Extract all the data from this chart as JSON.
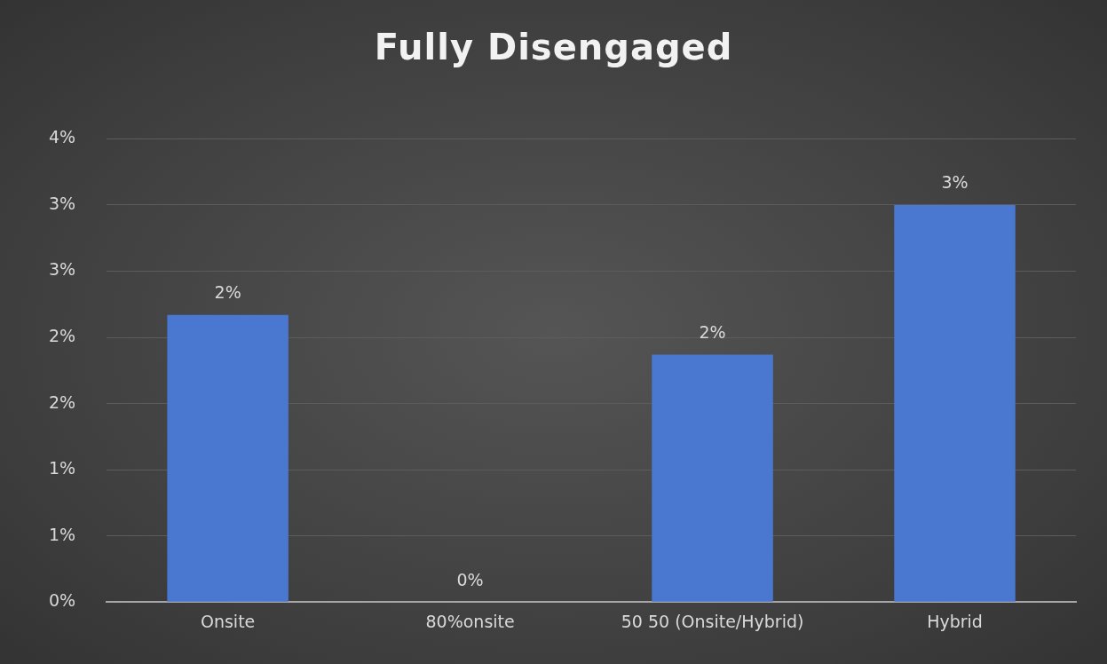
{
  "chart_data": {
    "type": "bar",
    "title": "Fully Disengaged",
    "categories": [
      "Onsite",
      "80%onsite",
      "50 50 (Onsite/Hybrid)",
      "Hybrid"
    ],
    "values": [
      2.17,
      0,
      1.87,
      3.0
    ],
    "color": "#4a78d0",
    "value_labels": [
      "2%",
      "0%",
      "2%",
      "3%"
    ],
    "ylim": [
      0,
      3.5
    ],
    "yticks": [
      {
        "value": 0,
        "label": "0%"
      },
      {
        "value": 0.5,
        "label": "1%"
      },
      {
        "value": 1,
        "label": "1%"
      },
      {
        "value": 1.5,
        "label": "2%"
      },
      {
        "value": 2,
        "label": "2%"
      },
      {
        "value": 2.5,
        "label": "3%"
      },
      {
        "value": 3,
        "label": "3%"
      },
      {
        "value": 3.5,
        "label": "4%"
      }
    ],
    "grid": "y",
    "legend": false
  }
}
